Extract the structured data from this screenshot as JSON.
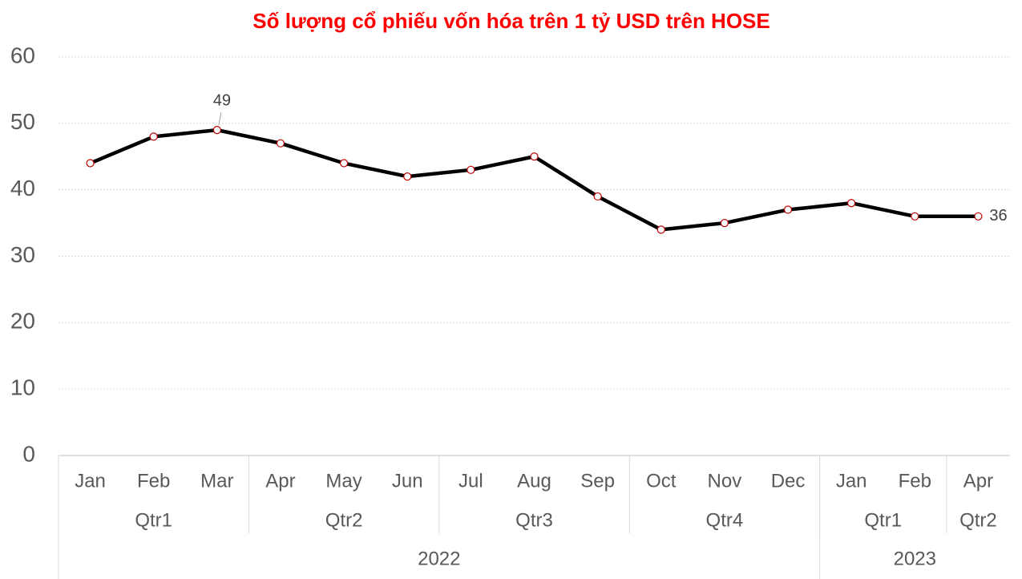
{
  "chart_data": {
    "type": "line",
    "title": "Số lượng cổ phiếu vốn hóa trên 1 tỷ USD trên HOSE",
    "categories": [
      "Jan",
      "Feb",
      "Mar",
      "Apr",
      "May",
      "Jun",
      "Jul",
      "Aug",
      "Sep",
      "Oct",
      "Nov",
      "Dec",
      "Jan",
      "Feb",
      "Apr"
    ],
    "quarters": [
      "Qtr1",
      "Qtr1",
      "Qtr1",
      "Qtr2",
      "Qtr2",
      "Qtr2",
      "Qtr3",
      "Qtr3",
      "Qtr3",
      "Qtr4",
      "Qtr4",
      "Qtr4",
      "Qtr1",
      "Qtr1",
      "Qtr2"
    ],
    "years": [
      "2022",
      "2022",
      "2022",
      "2022",
      "2022",
      "2022",
      "2022",
      "2022",
      "2022",
      "2022",
      "2022",
      "2022",
      "2023",
      "2023",
      "2023"
    ],
    "values": [
      44,
      48,
      49,
      47,
      44,
      42,
      43,
      45,
      39,
      34,
      35,
      37,
      38,
      36,
      36
    ],
    "value_labels": [
      null,
      null,
      "49",
      null,
      null,
      null,
      null,
      null,
      null,
      null,
      null,
      null,
      null,
      null,
      "36"
    ],
    "color": "#000000",
    "marker_color": "#c00000",
    "title_color": "#ff0000",
    "ylim": [
      0,
      60
    ],
    "yticks": [
      0,
      10,
      20,
      30,
      40,
      50,
      60
    ],
    "grid": true
  }
}
